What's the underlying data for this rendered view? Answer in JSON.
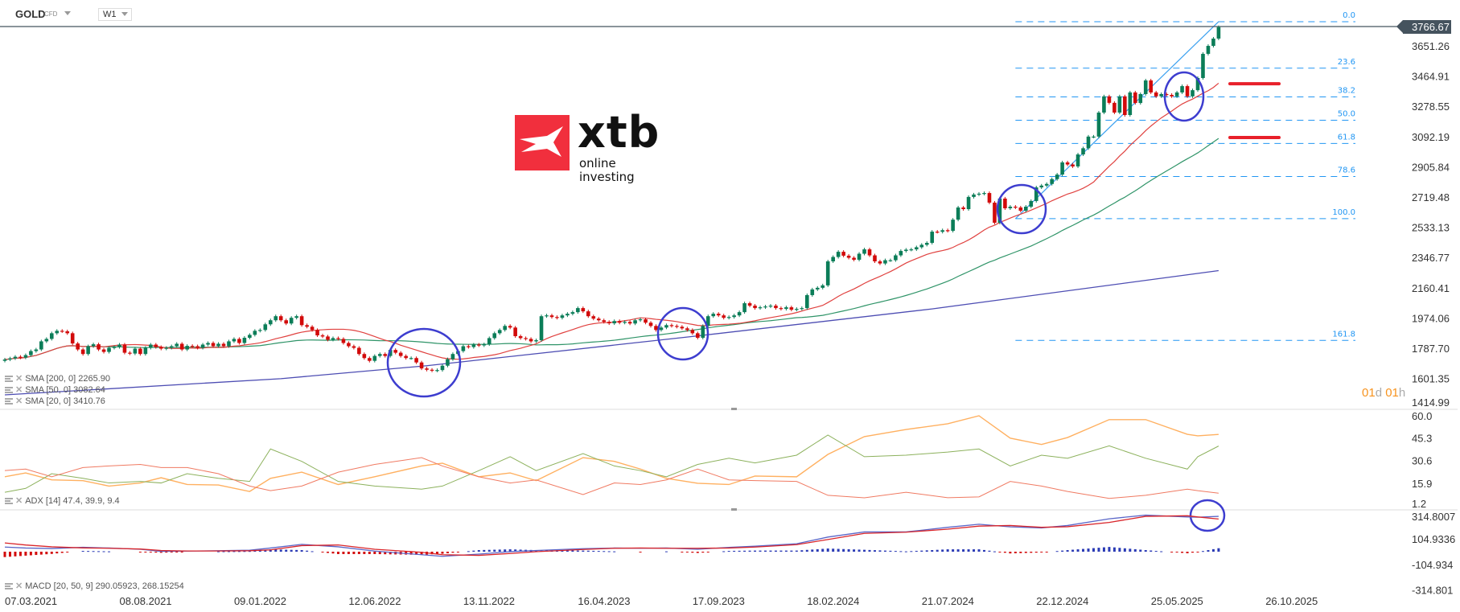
{
  "header": {
    "symbol": "GOLD",
    "instrument_type": "CFD",
    "timeframe": "W1"
  },
  "logo": {
    "brand": "xtb",
    "tagline": "online investing",
    "color": "#f12f3d"
  },
  "last_price": "3766.67",
  "countdown": {
    "days": "01",
    "d": "d",
    "hours": "01",
    "h": "h"
  },
  "legends": {
    "sma200": "SMA [200, 0] 2265.90",
    "sma50": "SMA [50, 0] 3082.64",
    "sma20": "SMA [20, 0] 3410.76",
    "adx": "ADX [14] 47.4, 39.9, 9.4",
    "macd": "MACD [20, 50, 9] 290.05923, 268.15254"
  },
  "colors": {
    "bull": "#0b7d58",
    "bear": "#d20a0a",
    "sma20": "#e0413f",
    "sma50": "#2f9468",
    "sma200": "#4d4db3",
    "fib": "#2196f3",
    "annotation_circle": "#3d3dcf",
    "annotation_bar": "#e8202a",
    "adx": "#ffb060",
    "plus_di": "#8cb15c",
    "minus_di": "#f07a62",
    "macd": "#5a66c8",
    "signal": "#d9252a",
    "price_line": "#45535e"
  },
  "chart_data": [
    {
      "type": "candlestick",
      "title": "",
      "interval": "W1",
      "x_ticks": [
        "07.03.2021",
        "08.08.2021",
        "09.01.2022",
        "12.06.2022",
        "13.11.2022",
        "16.04.2023",
        "17.09.2023",
        "18.02.2024",
        "21.07.2024",
        "22.12.2024",
        "25.05.2025",
        "26.10.2025"
      ],
      "y_ticks": [
        "3651.26",
        "3464.91",
        "3278.55",
        "3092.19",
        "2905.84",
        "2719.48",
        "2533.13",
        "2346.77",
        "2160.41",
        "1974.06",
        "1787.70",
        "1601.35",
        "1414.99"
      ],
      "ylim": [
        1414.99,
        3766.67
      ],
      "closes": [
        1718,
        1725,
        1735,
        1730,
        1745,
        1770,
        1780,
        1830,
        1845,
        1880,
        1895,
        1892,
        1880,
        1817,
        1780,
        1752,
        1800,
        1812,
        1780,
        1765,
        1790,
        1795,
        1810,
        1760,
        1755,
        1785,
        1752,
        1790,
        1810,
        1795,
        1785,
        1790,
        1800,
        1815,
        1780,
        1802,
        1800,
        1790,
        1810,
        1820,
        1800,
        1815,
        1800,
        1830,
        1845,
        1820,
        1852,
        1870,
        1895,
        1900,
        1935,
        1960,
        1985,
        1960,
        1940,
        1975,
        1985,
        1930,
        1920,
        1900,
        1867,
        1860,
        1840,
        1850,
        1845,
        1820,
        1800,
        1790,
        1752,
        1727,
        1710,
        1740,
        1752,
        1740,
        1777,
        1760,
        1740,
        1727,
        1727,
        1700,
        1663,
        1655,
        1650,
        1653,
        1680,
        1720,
        1752,
        1770,
        1800,
        1795,
        1810,
        1805,
        1812,
        1850,
        1880,
        1900,
        1925,
        1915,
        1862,
        1850,
        1845,
        1830,
        1837,
        1985,
        1990,
        1980,
        1975,
        1990,
        2000,
        2010,
        2035,
        2015,
        1985,
        1970,
        1960,
        1950,
        1941,
        1955,
        1945,
        1950,
        1940,
        1960,
        1966,
        1945,
        1925,
        1900,
        1915,
        1930,
        1925,
        1920,
        1910,
        1900,
        1880,
        1852,
        1925,
        1985,
        2000,
        1990,
        1975,
        1980,
        1990,
        2010,
        2065,
        2050,
        2035,
        2040,
        2045,
        2050,
        2035,
        2030,
        2040,
        2025,
        2030,
        2035,
        2115,
        2150,
        2160,
        2175,
        2323,
        2350,
        2382,
        2358,
        2345,
        2333,
        2370,
        2397,
        2360,
        2323,
        2310,
        2330,
        2330,
        2360,
        2387,
        2395,
        2397,
        2410,
        2425,
        2437,
        2506,
        2505,
        2515,
        2511,
        2580,
        2655,
        2645,
        2720,
        2735,
        2740,
        2744,
        2685,
        2561,
        2710,
        2650,
        2660,
        2655,
        2635,
        2660,
        2695,
        2779,
        2790,
        2800,
        2830,
        2858,
        2933,
        2920,
        2908,
        2982,
        3020,
        3092,
        3092,
        3240,
        3340,
        3300,
        3240,
        3340,
        3225,
        3364,
        3299,
        3354,
        3438,
        3364,
        3340,
        3354,
        3349,
        3340,
        3364,
        3403,
        3340,
        3378,
        3453,
        3602,
        3651,
        3696,
        3766.67
      ],
      "sma_periods": {
        "fast": 20,
        "mid": 50
      },
      "sma200_points": [
        [
          "07.03.2021",
          1500
        ],
        [
          "13.03.2022",
          1600
        ],
        [
          "25.09.2022",
          1680
        ],
        [
          "17.09.2023",
          1860
        ],
        [
          "04.08.2024",
          2030
        ],
        [
          "24.08.2025",
          2266
        ]
      ],
      "fibonacci": {
        "high": 3800,
        "low": 2586,
        "start_date": "24.11.2024",
        "end_date": "24.08.2025",
        "levels": [
          {
            "ratio": 0.0,
            "label": "0.0"
          },
          {
            "ratio": 0.236,
            "label": "23.6"
          },
          {
            "ratio": 0.382,
            "label": "38.2"
          },
          {
            "ratio": 0.5,
            "label": "50.0"
          },
          {
            "ratio": 0.618,
            "label": "61.8"
          },
          {
            "ratio": 0.786,
            "label": "78.6"
          },
          {
            "ratio": 1.0,
            "label": "100.0"
          },
          {
            "ratio": 1.618,
            "label": "161.8"
          }
        ]
      },
      "marked_levels": [
        3418,
        3086
      ]
    },
    {
      "type": "line",
      "title": "ADX [14]",
      "y_ticks": [
        "60.0",
        "45.3",
        "30.6",
        "15.9",
        "1.2"
      ],
      "ylim": [
        1.2,
        60.0
      ],
      "dates": [
        "07.03.2021",
        "04.04.2021",
        "09.05.2021",
        "20.06.2021",
        "25.07.2021",
        "05.09.2021",
        "03.10.2021",
        "07.11.2021",
        "19.12.2021",
        "30.01.2022",
        "27.02.2022",
        "10.04.2022",
        "29.05.2022",
        "17.07.2022",
        "18.09.2022",
        "16.10.2022",
        "04.12.2022",
        "15.01.2023",
        "19.02.2023",
        "23.04.2023",
        "04.06.2023",
        "09.07.2023",
        "13.08.2023",
        "24.09.2023",
        "05.11.2023",
        "10.12.2023",
        "04.02.2024",
        "17.03.2024",
        "05.05.2024",
        "30.06.2024",
        "25.08.2024",
        "06.10.2024",
        "17.11.2024",
        "29.12.2024",
        "02.02.2025",
        "30.03.2025",
        "18.05.2025",
        "13.07.2025",
        "27.07.2025",
        "24.08.2025"
      ],
      "adx": [
        20,
        22.5,
        18,
        17.5,
        14,
        16,
        19.4,
        15,
        14.7,
        10.5,
        19,
        23,
        15,
        20,
        27,
        28.8,
        20,
        22.5,
        17.5,
        32.4,
        30,
        25,
        19,
        15.8,
        15,
        20.5,
        20,
        34.5,
        46,
        50.6,
        54.3,
        59.5,
        45,
        40.9,
        45.4,
        57,
        57,
        47.5,
        46.5,
        47.4
      ],
      "plus_di": [
        10,
        12.5,
        22,
        19,
        16,
        17,
        16,
        22,
        19,
        17,
        38,
        30,
        17,
        14,
        12,
        14,
        24,
        33,
        24,
        35,
        27,
        24,
        20,
        28,
        32,
        29,
        34,
        47,
        33,
        34,
        36,
        38,
        27,
        34,
        32,
        40,
        32,
        25,
        33,
        39.9
      ],
      "minus_di": [
        24,
        25,
        20,
        26,
        27,
        28,
        26,
        26,
        22,
        14,
        11,
        14,
        23,
        28,
        32.4,
        27,
        20,
        16,
        18,
        8.5,
        16,
        15,
        18,
        25,
        18,
        17.5,
        17,
        8,
        6.4,
        10,
        6.5,
        7,
        17,
        14,
        10.5,
        6,
        8,
        12,
        11,
        9.4
      ]
    },
    {
      "type": "line",
      "title": "MACD [20, 50, 9]",
      "y_ticks": [
        "314.8007",
        "104.9336",
        "-104.934",
        "-314.801"
      ],
      "ylim": [
        -314.801,
        314.8007
      ],
      "macd": [
        38,
        30,
        26,
        36,
        30,
        20,
        3,
        5,
        8,
        12,
        30,
        60,
        40,
        5,
        -25,
        -38,
        -20,
        0,
        10,
        25,
        30,
        28,
        30,
        20,
        35,
        45,
        65,
        120,
        162,
        162,
        200,
        225,
        204,
        195,
        215,
        270,
        300,
        285,
        283,
        290.05923
      ],
      "signal": [
        72,
        55,
        40,
        31,
        28,
        22,
        10,
        6,
        6,
        8,
        15,
        50,
        55,
        20,
        -5,
        -25,
        -30,
        -15,
        0,
        18,
        28,
        30,
        28,
        28,
        30,
        38,
        58,
        100,
        150,
        160,
        185,
        210,
        215,
        200,
        205,
        240,
        290,
        295,
        285,
        268.15254
      ]
    }
  ]
}
